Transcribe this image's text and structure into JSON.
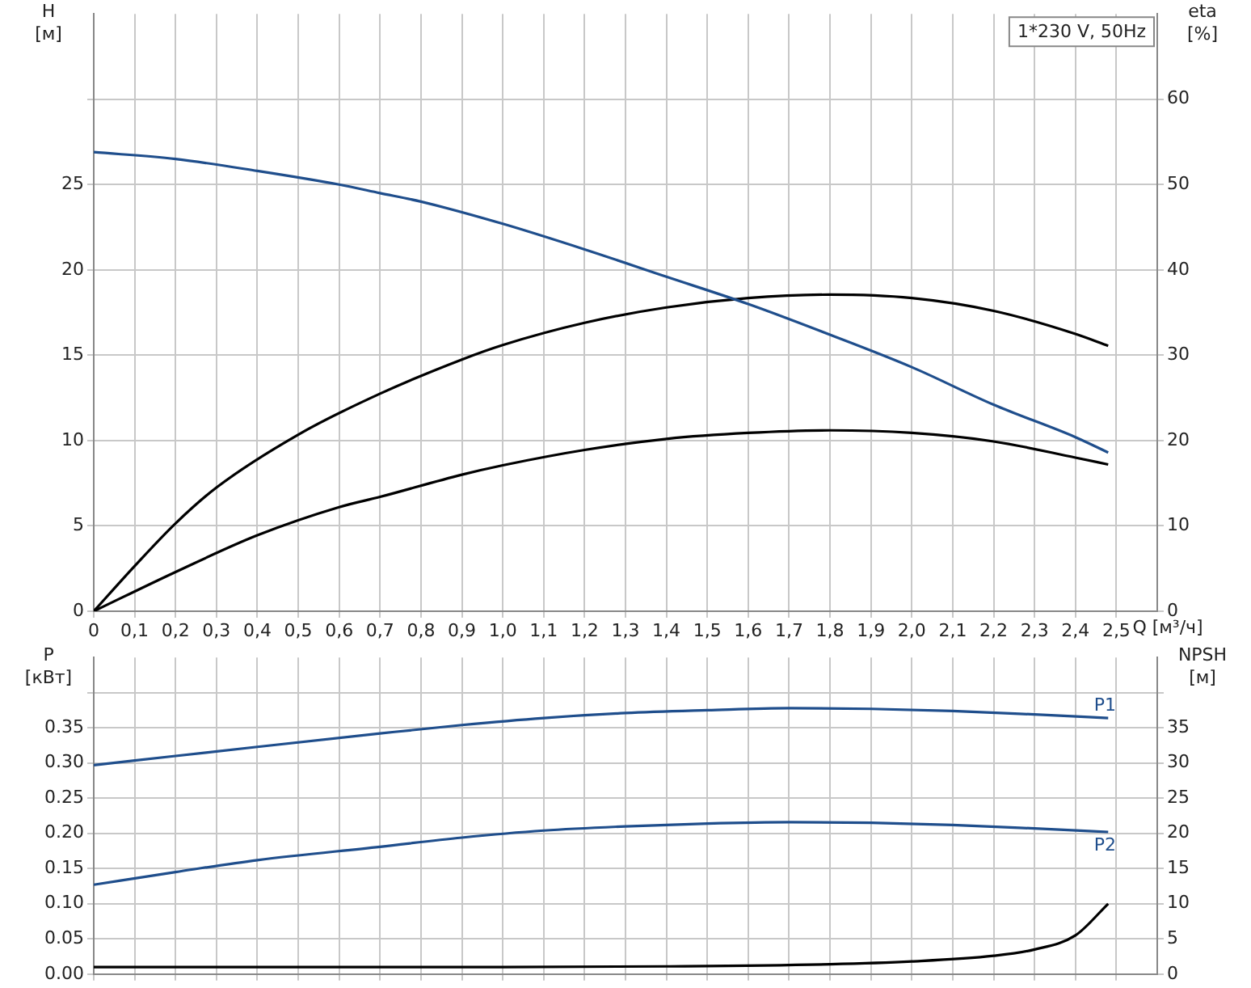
{
  "chart_data": [
    {
      "type": "line",
      "title": "1*230 V, 50Hz",
      "xlabel": "Q [м³/ч]",
      "ylabel": "H\n[м]",
      "y2label": "eta\n[%]",
      "grid": true,
      "legend": false,
      "marker": "none",
      "line_style": "solid",
      "xlim": [
        0,
        2.6
      ],
      "xticks": [
        {
          "value": 0,
          "label": "0"
        },
        {
          "value": 0.1,
          "label": "0,1"
        },
        {
          "value": 0.2,
          "label": "0,2"
        },
        {
          "value": 0.3,
          "label": "0,3"
        },
        {
          "value": 0.4,
          "label": "0,4"
        },
        {
          "value": 0.5,
          "label": "0,5"
        },
        {
          "value": 0.6,
          "label": "0,6"
        },
        {
          "value": 0.7,
          "label": "0,7"
        },
        {
          "value": 0.8,
          "label": "0,8"
        },
        {
          "value": 0.9,
          "label": "0,9"
        },
        {
          "value": 1.0,
          "label": "1,0"
        },
        {
          "value": 1.1,
          "label": "1,1"
        },
        {
          "value": 1.2,
          "label": "1,2"
        },
        {
          "value": 1.3,
          "label": "1,3"
        },
        {
          "value": 1.4,
          "label": "1,4"
        },
        {
          "value": 1.5,
          "label": "1,5"
        },
        {
          "value": 1.6,
          "label": "1,6"
        },
        {
          "value": 1.7,
          "label": "1,7"
        },
        {
          "value": 1.8,
          "label": "1,8"
        },
        {
          "value": 1.9,
          "label": "1,9"
        },
        {
          "value": 2.0,
          "label": "2,0"
        },
        {
          "value": 2.1,
          "label": "2,1"
        },
        {
          "value": 2.2,
          "label": "2,2"
        },
        {
          "value": 2.3,
          "label": "2,3"
        },
        {
          "value": 2.4,
          "label": "2,4"
        },
        {
          "value": 2.5,
          "label": "2,5"
        }
      ],
      "ylim": [
        0,
        35
      ],
      "yticks": [
        0,
        5,
        10,
        15,
        20,
        25,
        {
          "value": 30,
          "label": null
        }
      ],
      "y2lim": [
        0,
        70
      ],
      "y2ticks": [
        0,
        10,
        20,
        30,
        40,
        50,
        60
      ],
      "series": [
        {
          "color": "#1f4e8c",
          "x": [
            0,
            0.2,
            0.4,
            0.6,
            0.7,
            0.8,
            1.0,
            1.2,
            1.4,
            1.6,
            1.8,
            2.0,
            2.2,
            2.4,
            2.48
          ],
          "values": [
            26.9,
            26.5,
            25.8,
            25.0,
            24.5,
            24.0,
            22.7,
            21.2,
            19.6,
            18.0,
            16.2,
            14.3,
            12.1,
            10.2,
            9.3
          ]
        },
        {
          "color": "#000000",
          "axis": "y2",
          "x": [
            0,
            0.1,
            0.2,
            0.3,
            0.5,
            0.7,
            0.9,
            1.0,
            1.2,
            1.4,
            1.6,
            1.8,
            2.0,
            2.2,
            2.4,
            2.48
          ],
          "values": [
            0,
            5.3,
            10.3,
            14.5,
            20.7,
            25.5,
            29.5,
            31.2,
            33.8,
            35.6,
            36.7,
            37.1,
            36.7,
            35.2,
            32.5,
            31.1
          ]
        },
        {
          "color": "#000000",
          "axis": "y2",
          "x": [
            0,
            0.2,
            0.4,
            0.6,
            0.7,
            0.9,
            1.0,
            1.2,
            1.4,
            1.6,
            1.8,
            2.0,
            2.2,
            2.4,
            2.48
          ],
          "values": [
            0,
            4.6,
            8.9,
            12.2,
            13.4,
            16.0,
            17.1,
            18.9,
            20.2,
            20.9,
            21.2,
            20.9,
            19.9,
            18.0,
            17.2
          ]
        }
      ]
    },
    {
      "type": "line",
      "ylabel": "P\n[кВт]",
      "y2label": "NPSH\n[м]",
      "grid": true,
      "legend": false,
      "marker": "none",
      "line_style": "solid",
      "tick_labels": "y",
      "xlim": [
        0,
        2.6
      ],
      "xticks": [
        0,
        0.1,
        0.2,
        0.3,
        0.4,
        0.5,
        0.6,
        0.7,
        0.8,
        0.9,
        1.0,
        1.1,
        1.2,
        1.3,
        1.4,
        1.5,
        1.6,
        1.7,
        1.8,
        1.9,
        2.0,
        2.1,
        2.2,
        2.3,
        2.4,
        2.5
      ],
      "ylim": [
        0,
        0.45
      ],
      "yticks": [
        {
          "value": 0,
          "label": "0.00"
        },
        {
          "value": 0.05,
          "label": "0.05"
        },
        {
          "value": 0.1,
          "label": "0.10"
        },
        {
          "value": 0.15,
          "label": "0.15"
        },
        {
          "value": 0.2,
          "label": "0.20"
        },
        {
          "value": 0.25,
          "label": "0.25"
        },
        {
          "value": 0.3,
          "label": "0.30"
        },
        {
          "value": 0.35,
          "label": "0.35"
        },
        {
          "value": 0.4,
          "label": null
        }
      ],
      "y2lim": [
        0,
        45
      ],
      "y2ticks": [
        0,
        5,
        10,
        15,
        20,
        25,
        30,
        35,
        {
          "value": 40,
          "label": null
        }
      ],
      "series": [
        {
          "name": "P1",
          "color": "#1f4e8c",
          "x": [
            0,
            0.2,
            0.4,
            0.7,
            0.9,
            1.1,
            1.3,
            1.5,
            1.7,
            1.9,
            2.1,
            2.3,
            2.48
          ],
          "values": [
            0.297,
            0.31,
            0.323,
            0.342,
            0.354,
            0.364,
            0.371,
            0.375,
            0.378,
            0.377,
            0.374,
            0.369,
            0.364
          ]
        },
        {
          "name": "P2",
          "color": "#1f4e8c",
          "x": [
            0,
            0.2,
            0.4,
            0.7,
            0.9,
            1.1,
            1.3,
            1.5,
            1.7,
            1.9,
            2.1,
            2.3,
            2.48
          ],
          "values": [
            0.127,
            0.145,
            0.162,
            0.181,
            0.194,
            0.204,
            0.21,
            0.214,
            0.216,
            0.215,
            0.212,
            0.207,
            0.202
          ]
        },
        {
          "color": "#000000",
          "axis": "y2",
          "x": [
            0,
            0.7,
            1.0,
            1.4,
            1.8,
            2.0,
            2.2,
            2.3,
            2.4,
            2.48
          ],
          "values": [
            1.0,
            1.0,
            1.0,
            1.1,
            1.4,
            1.8,
            2.6,
            3.5,
            5.5,
            10.0
          ]
        }
      ]
    }
  ]
}
